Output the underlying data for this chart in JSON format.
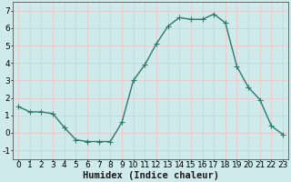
{
  "x": [
    0,
    1,
    2,
    3,
    4,
    5,
    6,
    7,
    8,
    9,
    10,
    11,
    12,
    13,
    14,
    15,
    16,
    17,
    18,
    19,
    20,
    21,
    22,
    23
  ],
  "y": [
    1.5,
    1.2,
    1.2,
    1.1,
    0.3,
    -0.4,
    -0.5,
    -0.5,
    -0.5,
    0.6,
    3.0,
    3.9,
    5.1,
    6.1,
    6.6,
    6.5,
    6.5,
    6.8,
    6.3,
    3.8,
    2.6,
    1.9,
    0.4,
    -0.1
  ],
  "line_color": "#2d7a6e",
  "marker": "+",
  "marker_size": 4,
  "line_width": 1.0,
  "xlim": [
    -0.5,
    23.5
  ],
  "ylim": [
    -1.5,
    7.5
  ],
  "yticks": [
    -1,
    0,
    1,
    2,
    3,
    4,
    5,
    6,
    7
  ],
  "xticks": [
    0,
    1,
    2,
    3,
    4,
    5,
    6,
    7,
    8,
    9,
    10,
    11,
    12,
    13,
    14,
    15,
    16,
    17,
    18,
    19,
    20,
    21,
    22,
    23
  ],
  "xlabel": "Humidex (Indice chaleur)",
  "background_color": "#ceeaea",
  "grid_color": "#e8c8c8",
  "xlabel_fontsize": 7.5,
  "tick_fontsize": 6.5,
  "spine_color": "#555555"
}
